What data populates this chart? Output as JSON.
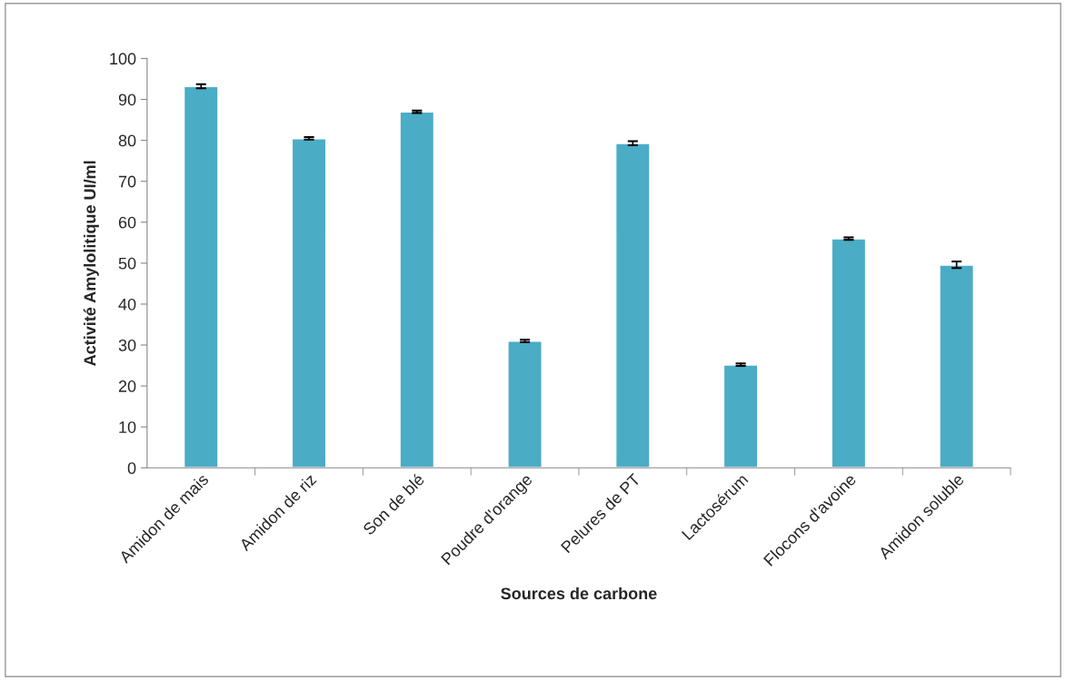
{
  "chart_data": {
    "type": "bar",
    "xlabel": "Sources de carbone",
    "ylabel": "Activité Amylolitique UI/ml",
    "categories": [
      "Amidon de mais",
      "Amidon de riz",
      "Son de blé",
      "Poudre d'orange",
      "Pelures de PT",
      "Lactosérum",
      "Flocons d'avoine",
      "Amidon soluble"
    ],
    "values": [
      93.2,
      80.5,
      87.0,
      31.0,
      79.3,
      25.2,
      56.0,
      49.6
    ],
    "errors": [
      0.5,
      0.3,
      0.3,
      0.3,
      0.5,
      0.3,
      0.3,
      0.8
    ],
    "color": "#4bacc6",
    "ylim": [
      0,
      100
    ],
    "yticks": [
      0,
      10,
      20,
      30,
      40,
      50,
      60,
      70,
      80,
      90,
      100
    ],
    "grid": false,
    "legend": false
  }
}
